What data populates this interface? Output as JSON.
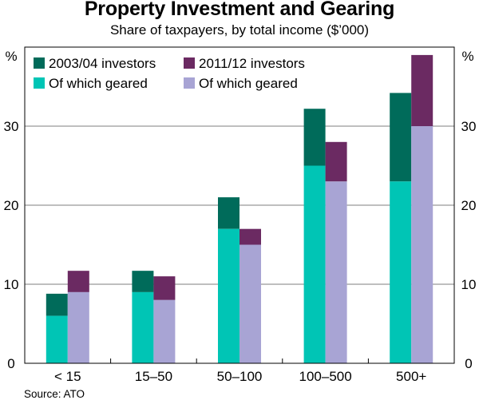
{
  "title": "Property Investment and Gearing",
  "subtitle": "Share of taxpayers, by total income ($’000)",
  "source": "Source: ATO",
  "chart_data": {
    "type": "bar",
    "layout": "paired stacked bars",
    "categories": [
      "< 15",
      "15–50",
      "50–100",
      "100–500",
      "500+"
    ],
    "unit_label_left": "%",
    "unit_label_right": "%",
    "ylim": [
      0,
      40
    ],
    "yticks": [
      0,
      10,
      20,
      30
    ],
    "grid": true,
    "legend_position": "top-left",
    "groups": [
      {
        "name": "2003/04",
        "investors_label": "2003/04 investors",
        "geared_label": "Of which geared",
        "investors": [
          8.8,
          11.7,
          21.0,
          32.2,
          34.2
        ],
        "geared": [
          6.0,
          9.0,
          17.0,
          25.0,
          23.0
        ],
        "investors_color": "#006b5a",
        "geared_color": "#00c5b5"
      },
      {
        "name": "2011/12",
        "investors_label": "2011/12 investors",
        "geared_label": "Of which geared",
        "investors": [
          11.7,
          11.0,
          17.0,
          28.0,
          39.0
        ],
        "geared": [
          9.0,
          8.0,
          15.0,
          23.0,
          30.0
        ],
        "investors_color": "#6b2a62",
        "geared_color": "#a8a4d4"
      }
    ]
  }
}
